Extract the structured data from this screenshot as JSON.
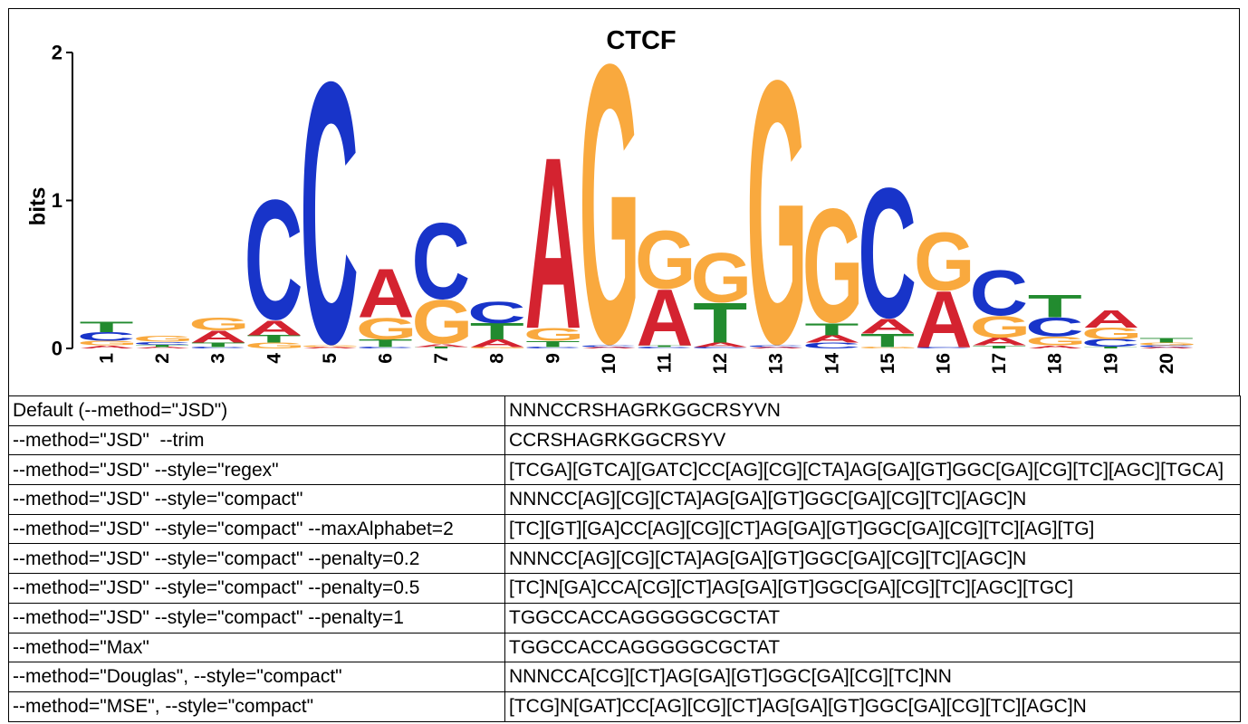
{
  "chart_data": {
    "type": "bar",
    "stacked": true,
    "title": "CTCF",
    "ylabel": "bits",
    "ylim": [
      0,
      2
    ],
    "yticks": [
      "0",
      "1",
      "2"
    ],
    "categories": [
      "1",
      "2",
      "3",
      "4",
      "5",
      "6",
      "7",
      "8",
      "9",
      "10",
      "11",
      "12",
      "13",
      "14",
      "15",
      "16",
      "17",
      "18",
      "19",
      "20"
    ],
    "series": [
      {
        "name": "A",
        "color": "#D42330",
        "values": [
          0.02,
          0.01,
          0.08,
          0.1,
          0.01,
          0.33,
          0.02,
          0.05,
          1.16,
          0.01,
          0.38,
          0.03,
          0.01,
          0.05,
          0.1,
          0.38,
          0.05,
          0.02,
          0.12,
          0.01
        ]
      },
      {
        "name": "C",
        "color": "#1834C9",
        "values": [
          0.06,
          0.02,
          0.01,
          0.82,
          1.79,
          0.01,
          0.52,
          0.15,
          0.01,
          0.01,
          0.01,
          0.01,
          0.01,
          0.04,
          0.89,
          0.01,
          0.31,
          0.13,
          0.05,
          0.01
        ]
      },
      {
        "name": "G",
        "color": "#F9A93E",
        "values": [
          0.03,
          0.04,
          0.09,
          0.04,
          0.01,
          0.15,
          0.3,
          0.01,
          0.09,
          1.91,
          0.4,
          0.34,
          1.8,
          0.78,
          0.01,
          0.4,
          0.15,
          0.06,
          0.08,
          0.02
        ]
      },
      {
        "name": "T",
        "color": "#228B2F",
        "values": [
          0.07,
          0.015,
          0.03,
          0.05,
          0.0,
          0.05,
          0.01,
          0.11,
          0.04,
          0.0,
          0.01,
          0.27,
          0.0,
          0.08,
          0.09,
          0.0,
          0.02,
          0.15,
          0.01,
          0.03
        ]
      }
    ]
  },
  "table": {
    "rows": [
      {
        "option": "Default (--method=\"JSD\")",
        "consensus": "NNNCCRSHAGRKGGCRSYVN"
      },
      {
        "option": "--method=\"JSD\"  --trim",
        "consensus": "CCRSHAGRKGGCRSYV"
      },
      {
        "option": "--method=\"JSD\" --style=\"regex\"",
        "consensus": "[TCGA][GTCA][GATC]CC[AG][CG][CTA]AG[GA][GT]GGC[GA][CG][TC][AGC][TGCA]"
      },
      {
        "option": "--method=\"JSD\" --style=\"compact\"",
        "consensus": "NNNCC[AG][CG][CTA]AG[GA][GT]GGC[GA][CG][TC][AGC]N"
      },
      {
        "option": "--method=\"JSD\" --style=\"compact\" --maxAlphabet=2",
        "consensus": "[TC][GT][GA]CC[AG][CG][CT]AG[GA][GT]GGC[GA][CG][TC][AG][TG]"
      },
      {
        "option": "--method=\"JSD\" --style=\"compact\" --penalty=0.2",
        "consensus": "NNNCC[AG][CG][CTA]AG[GA][GT]GGC[GA][CG][TC][AGC]N"
      },
      {
        "option": "--method=\"JSD\" --style=\"compact\" --penalty=0.5",
        "consensus": "[TC]N[GA]CCA[CG][CT]AG[GA][GT]GGC[GA][CG][TC][AGC][TGC]"
      },
      {
        "option": "--method=\"JSD\" --style=\"compact\" --penalty=1",
        "consensus": "TGGCCACCAGGGGGCGCTAT"
      },
      {
        "option": "--method=\"Max\"",
        "consensus": "TGGCCACCAGGGGGCGCTAT"
      },
      {
        "option": "--method=\"Douglas\", --style=\"compact\"",
        "consensus": "NNNCCA[CG][CT]AG[GA][GT]GGC[GA][CG][TC]NN"
      },
      {
        "option": "--method=\"MSE\", --style=\"compact\"",
        "consensus": "[TCG]N[GAT]CC[AG][CG][CT]AG[GA][GT]GGC[GA][CG][TC][AGC]N"
      }
    ]
  }
}
